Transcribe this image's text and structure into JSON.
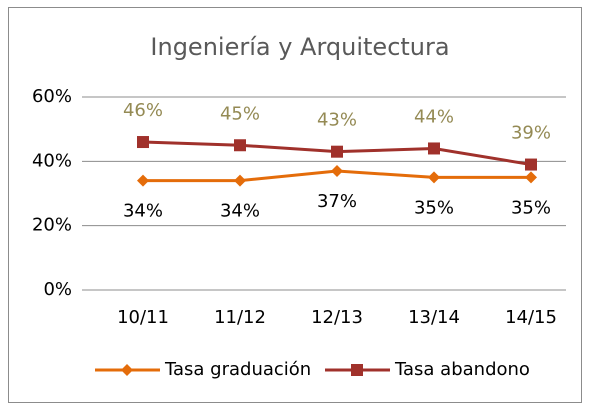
{
  "chart_data": {
    "type": "line",
    "title": "Ingeniería y Arquitectura",
    "categories": [
      "10/11",
      "11/12",
      "12/13",
      "13/14",
      "14/15"
    ],
    "series": [
      {
        "name": "Tasa graduación",
        "color": "#e46c0a",
        "marker": "diamond",
        "values": [
          34,
          34,
          37,
          35,
          35
        ],
        "value_labels": [
          "34%",
          "34%",
          "37%",
          "35%",
          "35%"
        ],
        "label_color": "#000000",
        "label_position": "below"
      },
      {
        "name": "Tasa abandono",
        "color": "#a0312b",
        "marker": "square",
        "values": [
          46,
          45,
          43,
          44,
          39
        ],
        "value_labels": [
          "46%",
          "45%",
          "43%",
          "44%",
          "39%"
        ],
        "label_color": "#948a54",
        "label_position": "above"
      }
    ],
    "ylim": [
      0,
      60
    ],
    "yticks": [
      {
        "value": 0,
        "label": "0%"
      },
      {
        "value": 20,
        "label": "20%"
      },
      {
        "value": 40,
        "label": "40%"
      },
      {
        "value": 60,
        "label": "60%"
      }
    ],
    "grid": true,
    "legend": "bottom"
  }
}
